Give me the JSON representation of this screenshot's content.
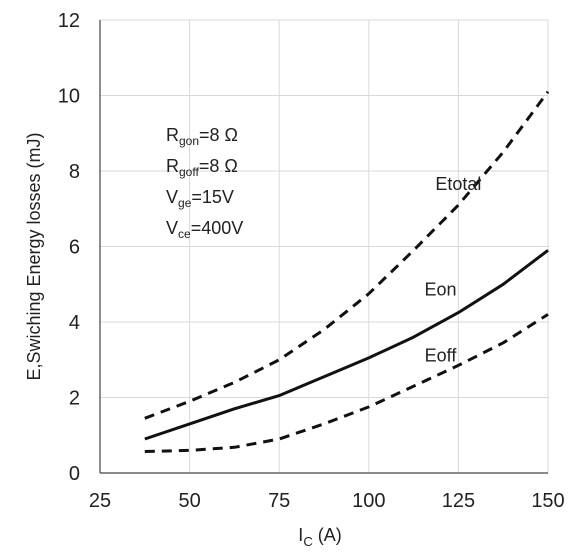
{
  "chart_data": {
    "type": "line",
    "xlabel": {
      "main": "I",
      "sub": "C",
      "unit": " (A)"
    },
    "ylabel": "E,Swiching Energy losses (mJ)",
    "xlim": [
      25,
      150
    ],
    "ylim": [
      0,
      12
    ],
    "x_ticks": [
      "25",
      "50",
      "75",
      "100",
      "125",
      "150"
    ],
    "y_ticks": [
      "0",
      "2",
      "4",
      "6",
      "8",
      "10",
      "12"
    ],
    "grid": true,
    "conditions": [
      {
        "main": "R",
        "sub": "gon",
        "value": "=8 Ω"
      },
      {
        "main": "R",
        "sub": "goff",
        "value": "=8 Ω"
      },
      {
        "main": "V",
        "sub": "ge",
        "value": "=15V"
      },
      {
        "main": "V",
        "sub": "ce",
        "value": "=400V"
      }
    ],
    "series": [
      {
        "name": "Etotal",
        "style": "dashed",
        "label_at": [
          125,
          7.5
        ],
        "x": [
          37.5,
          50,
          62.5,
          75,
          87.5,
          100,
          112.5,
          125,
          137.5,
          150
        ],
        "y": [
          1.45,
          1.9,
          2.4,
          3.0,
          3.8,
          4.75,
          5.9,
          7.1,
          8.5,
          10.1
        ]
      },
      {
        "name": "Eon",
        "style": "solid",
        "label_at": [
          120,
          4.7
        ],
        "x": [
          37.5,
          50,
          62.5,
          75,
          87.5,
          100,
          112.5,
          125,
          137.5,
          150
        ],
        "y": [
          0.9,
          1.3,
          1.7,
          2.05,
          2.55,
          3.05,
          3.6,
          4.25,
          5.0,
          5.9
        ]
      },
      {
        "name": "Eoff",
        "style": "dashed",
        "label_at": [
          120,
          2.95
        ],
        "x": [
          37.5,
          50,
          62.5,
          75,
          87.5,
          100,
          112.5,
          125,
          137.5,
          150
        ],
        "y": [
          0.57,
          0.6,
          0.68,
          0.9,
          1.3,
          1.75,
          2.3,
          2.85,
          3.45,
          4.2
        ]
      }
    ]
  }
}
